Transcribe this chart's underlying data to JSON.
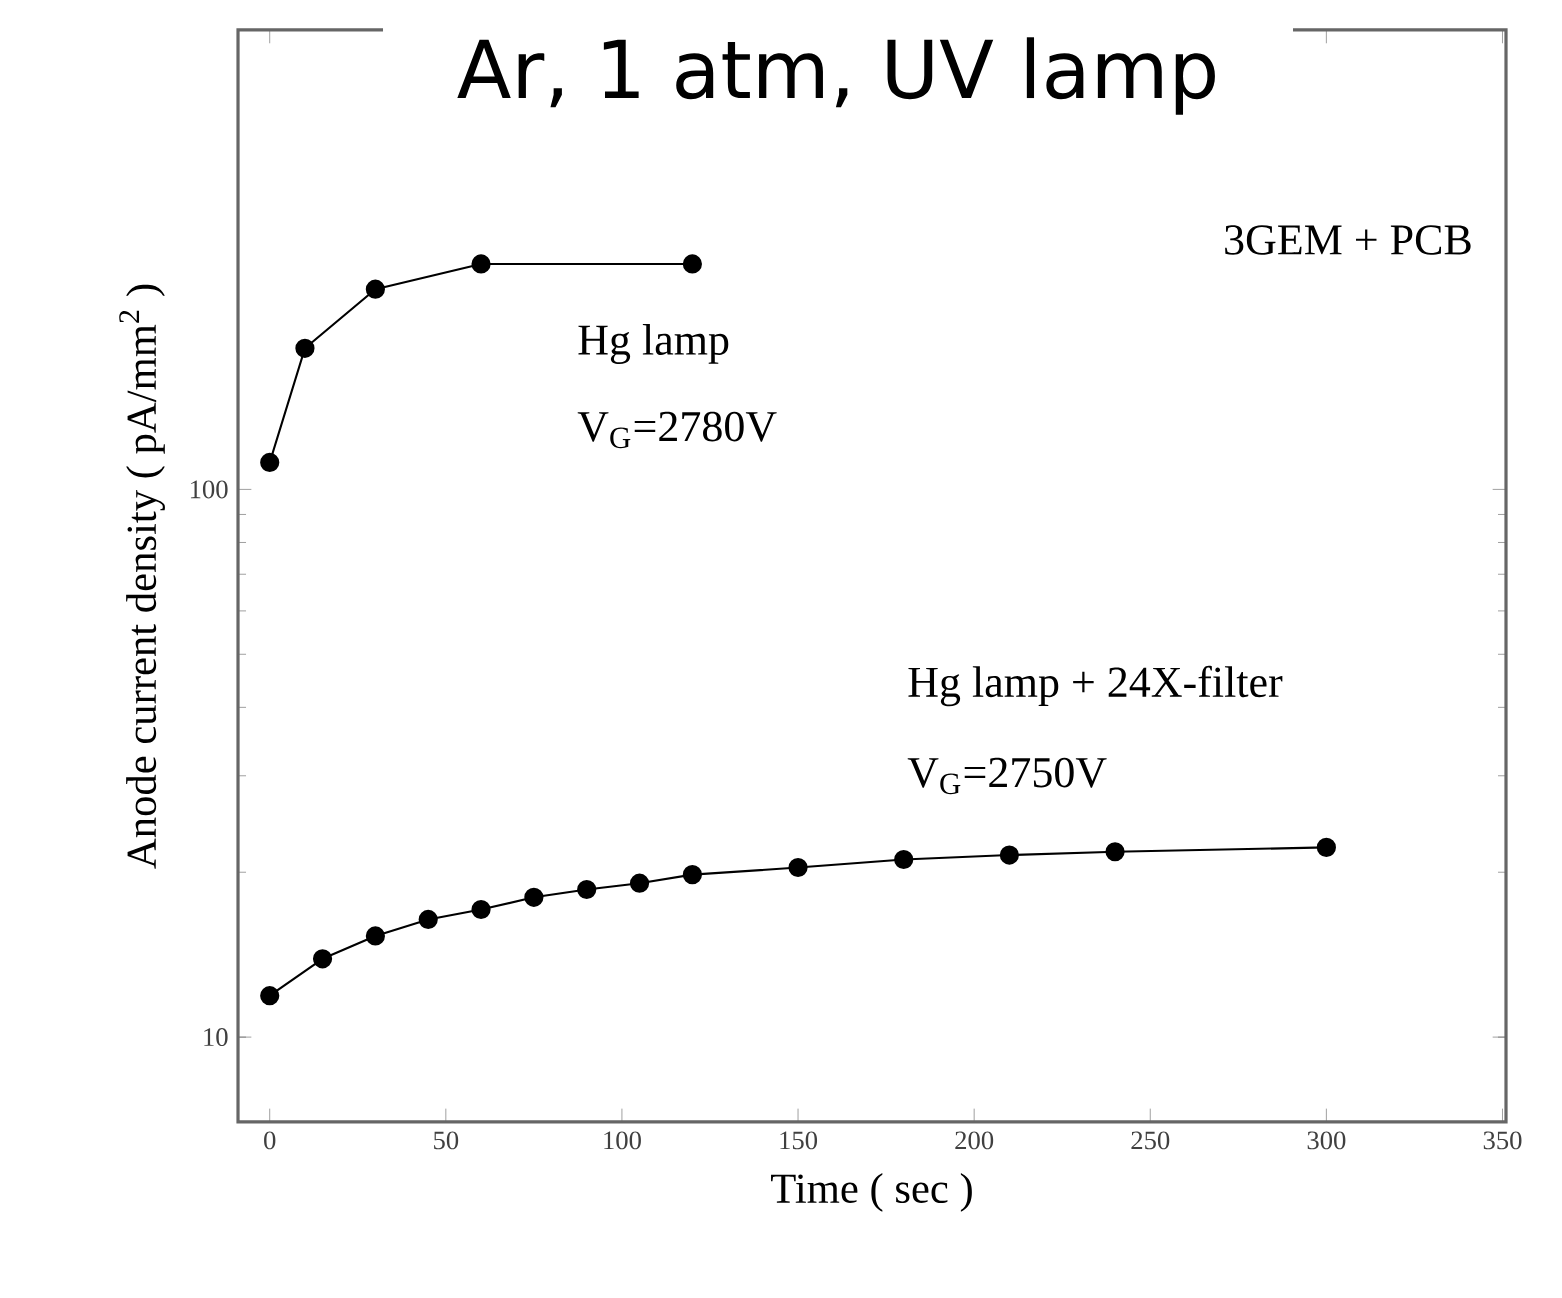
{
  "chart_data": {
    "type": "line",
    "title": "Ar, 1 atm, UV lamp",
    "xlabel": "Time ( sec )",
    "ylabel": "Anode current density ( pA/mm$^{2}$ )",
    "annotations": [
      "3GEM + PCB",
      "Hg lamp",
      "V$_{G}$=2780V",
      "Hg lamp + 24X-filter",
      "V$_{G}$=2750V"
    ],
    "log": "y",
    "marker": "circle",
    "line_style": "solid",
    "grid": false,
    "legend": false,
    "xlim": [
      -9,
      351
    ],
    "xticks": [
      0,
      50,
      100,
      150,
      200,
      250,
      300,
      350
    ],
    "ylim": [
      7,
      690
    ],
    "yticks": [
      10,
      100
    ],
    "series": [
      {
        "color": "#000000",
        "x": [
          0,
          10,
          30,
          60,
          120
        ],
        "values": [
          112,
          181,
          232,
          258,
          258
        ]
      },
      {
        "color": "#000000",
        "x": [
          0,
          15,
          30,
          45,
          60,
          75,
          90,
          105,
          120,
          150,
          180,
          210,
          240,
          300
        ],
        "values": [
          11.9,
          13.9,
          15.3,
          16.4,
          17.1,
          18.0,
          18.6,
          19.1,
          19.8,
          20.4,
          21.1,
          21.5,
          21.8,
          22.2
        ]
      }
    ]
  }
}
